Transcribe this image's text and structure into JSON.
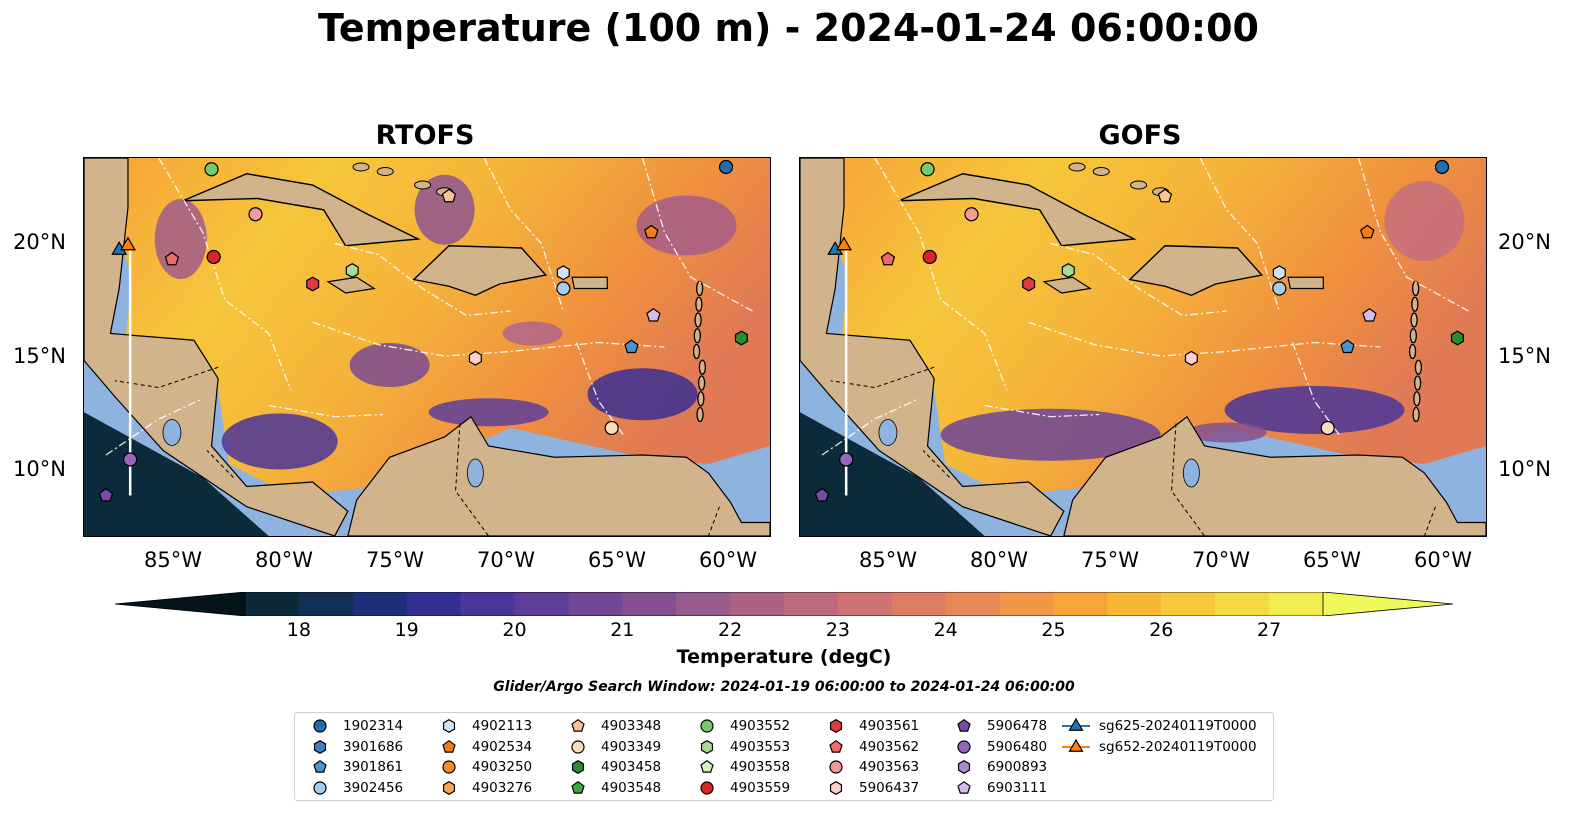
{
  "title": "Temperature (100 m) - 2024-01-24 06:00:00",
  "panels": [
    {
      "title": "RTOFS",
      "key": "rtofs"
    },
    {
      "title": "GOFS",
      "key": "gofs"
    }
  ],
  "axes": {
    "lon_ticks": [
      "85°W",
      "80°W",
      "75°W",
      "70°W",
      "65°W",
      "60°W"
    ],
    "lat_ticks": [
      "20°N",
      "15°N",
      "10°N"
    ]
  },
  "colorbar": {
    "label": "Temperature (degC)",
    "min": 18,
    "max": 27,
    "step": 0.5,
    "ticks": [
      "18",
      "19",
      "20",
      "21",
      "22",
      "23",
      "24",
      "25",
      "26",
      "27"
    ],
    "colors": [
      "#0a2a3b",
      "#0f2f55",
      "#1e2f7a",
      "#322f93",
      "#4a3599",
      "#5e3e99",
      "#714796",
      "#845091",
      "#975a8c",
      "#aa6285",
      "#bd6a7e",
      "#cf7373",
      "#de7c66",
      "#ea8757",
      "#f39646",
      "#f7a53a",
      "#f8b735",
      "#f6c93b",
      "#f3db41",
      "#f2ed4e"
    ],
    "under_color": "#04141c",
    "over_color": "#eef85a"
  },
  "search_window": "Glider/Argo Search Window: 2024-01-19 06:00:00 to 2024-01-24 06:00:00",
  "legend": [
    {
      "label": "1902314",
      "marker": "circle",
      "color": "#1f6fb0"
    },
    {
      "label": "3901686",
      "marker": "hexagon",
      "color": "#3f7fbf"
    },
    {
      "label": "3901861",
      "marker": "pentagon",
      "color": "#4f92d0"
    },
    {
      "label": "3902456",
      "marker": "circle",
      "color": "#a5cdee"
    },
    {
      "label": "4902113",
      "marker": "hexagon",
      "color": "#cde4f7"
    },
    {
      "label": "4902534",
      "marker": "pentagon",
      "color": "#f07e1a"
    },
    {
      "label": "4903250",
      "marker": "circle",
      "color": "#f58c2a"
    },
    {
      "label": "4903276",
      "marker": "hexagon",
      "color": "#f7a35c"
    },
    {
      "label": "4903348",
      "marker": "pentagon",
      "color": "#f8c592"
    },
    {
      "label": "4903349",
      "marker": "circle",
      "color": "#fbdcbb"
    },
    {
      "label": "4903458",
      "marker": "hexagon",
      "color": "#2a8a35"
    },
    {
      "label": "4903548",
      "marker": "pentagon",
      "color": "#3ea83e"
    },
    {
      "label": "4903552",
      "marker": "circle",
      "color": "#78c86c"
    },
    {
      "label": "4903553",
      "marker": "hexagon",
      "color": "#a6dc96"
    },
    {
      "label": "4903558",
      "marker": "pentagon",
      "color": "#d7f2c8"
    },
    {
      "label": "4903559",
      "marker": "circle",
      "color": "#d62728"
    },
    {
      "label": "4903561",
      "marker": "hexagon",
      "color": "#e03a3e"
    },
    {
      "label": "4903562",
      "marker": "pentagon",
      "color": "#ee6a6a"
    },
    {
      "label": "4903563",
      "marker": "circle",
      "color": "#f59a9a"
    },
    {
      "label": "5906437",
      "marker": "hexagon",
      "color": "#fbd0cc"
    },
    {
      "label": "5906478",
      "marker": "pentagon",
      "color": "#7b4aa6"
    },
    {
      "label": "5906480",
      "marker": "circle",
      "color": "#9467bd"
    },
    {
      "label": "6900893",
      "marker": "hexagon",
      "color": "#ab8bd1"
    },
    {
      "label": "6903111",
      "marker": "pentagon",
      "color": "#d2bde8"
    },
    {
      "label": "sg625-20240119T0000",
      "marker": "line-triangle",
      "color": "#1f77b4"
    },
    {
      "label": "sg652-20240119T0000",
      "marker": "line-triangle",
      "color": "#ff7f0e"
    }
  ]
}
